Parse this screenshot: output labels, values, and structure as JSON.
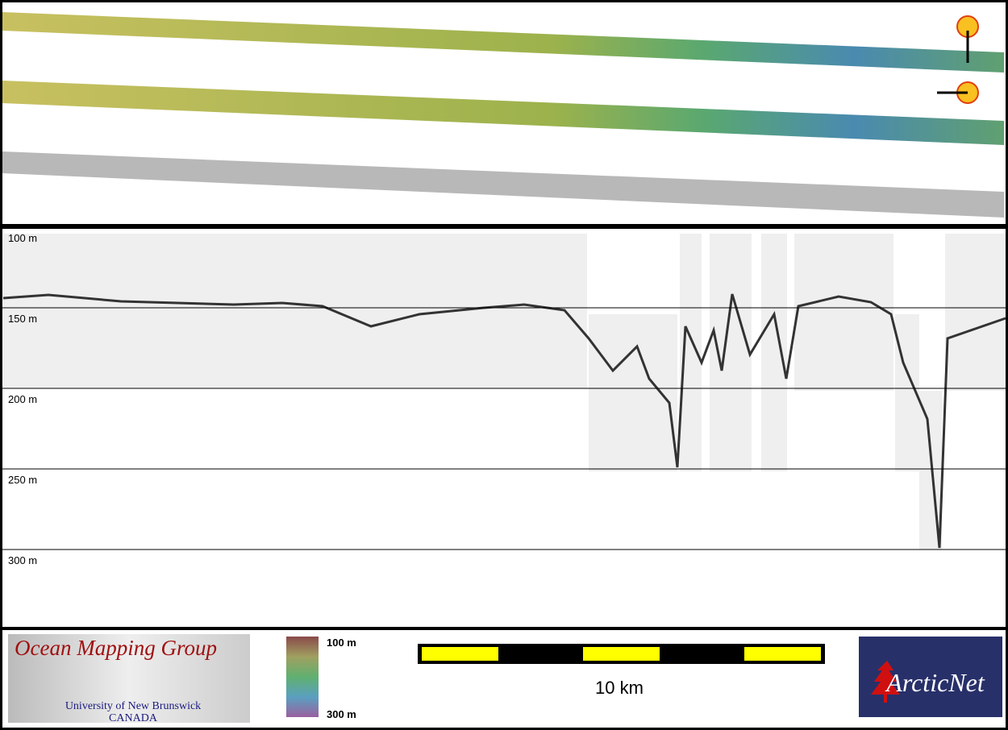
{
  "profile": {
    "depth_labels": [
      "100 m",
      "150 m",
      "200 m",
      "250 m",
      "300 m"
    ]
  },
  "colorbar": {
    "top_label": "100 m",
    "bottom_label": "300 m"
  },
  "scale_bar": {
    "label": "10 km"
  },
  "logos": {
    "omg": {
      "title": "Ocean Mapping Group",
      "subtitle": "University of New Brunswick",
      "country": "CANADA"
    },
    "arcticnet": {
      "name": "ArcticNet"
    }
  }
}
